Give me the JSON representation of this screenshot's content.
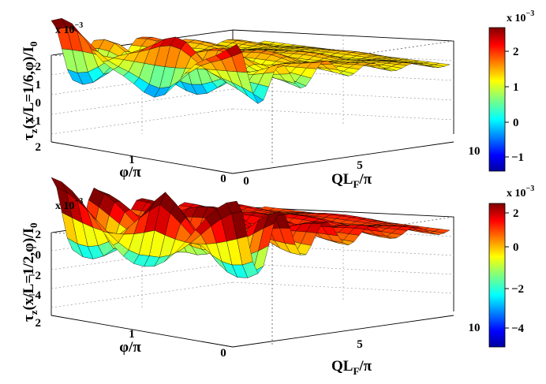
{
  "chart_data": [
    {
      "type": "surface",
      "zlabel": "τ_z(x/L=1/6,φ)/I_0",
      "zlabel_main": "τ",
      "zlabel_sub": "z",
      "zlabel_rest": "(x/L=1/6,φ)/I",
      "zlabel_sub2": "0",
      "xlabel_main": "QL",
      "xlabel_sub": "F",
      "xlabel_rest": "/π",
      "ylabel": "φ/π",
      "multiplier_base": "x 10",
      "multiplier_exp": "−3",
      "x_ticks": [
        "0",
        "5",
        "10"
      ],
      "y_ticks": [
        "0",
        "1",
        "2"
      ],
      "z_ticks": [
        "2",
        "1",
        "0",
        "−1"
      ],
      "colorbar_ticks": [
        "2",
        "1",
        "0",
        "−1"
      ],
      "colorbar_multiplier_base": "x 10",
      "colorbar_multiplier_exp": "−3",
      "xlim": [
        0,
        10
      ],
      "ylim": [
        0,
        2
      ],
      "zlim": [
        -1.5,
        2.5
      ],
      "clim": [
        -1.5,
        2.6
      ],
      "colormap": "jet",
      "grid": true
    },
    {
      "type": "surface",
      "zlabel": "τ_z(x/L=1/2,φ)/I_0",
      "zlabel_main": "τ",
      "zlabel_sub": "z",
      "zlabel_rest": "(x/L=1/2,φ)/I",
      "zlabel_sub2": "0",
      "xlabel_main": "QL",
      "xlabel_sub": "F",
      "xlabel_rest": "/π",
      "ylabel": "φ/π",
      "multiplier_base": "x 10",
      "multiplier_exp": "−3",
      "x_ticks": [
        "0",
        "5",
        "10"
      ],
      "y_ticks": [
        "0",
        "1",
        "2"
      ],
      "z_ticks": [
        "2",
        "0",
        "−2",
        "−4"
      ],
      "colorbar_ticks": [
        "2",
        "0",
        "−2",
        "−4"
      ],
      "colorbar_multiplier_base": "x 10",
      "colorbar_multiplier_exp": "−3",
      "xlim": [
        0,
        10
      ],
      "ylim": [
        0,
        2
      ],
      "zlim": [
        -5,
        2.5
      ],
      "clim": [
        -5,
        2.3
      ],
      "colormap": "jet",
      "grid": true
    }
  ]
}
